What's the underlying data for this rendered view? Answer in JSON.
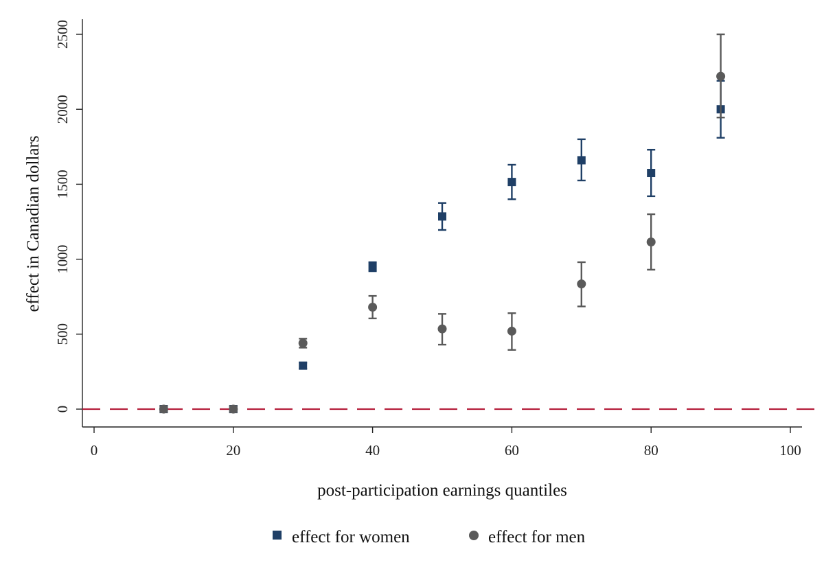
{
  "chart_data": {
    "type": "scatter",
    "title": "",
    "xlabel": "post-participation earnings quantiles",
    "ylabel": "effect in Canadian dollars",
    "xlim": [
      0,
      100
    ],
    "ylim": [
      0,
      2500
    ],
    "xticks": [
      "0",
      "20",
      "40",
      "60",
      "80",
      "100"
    ],
    "yticks": [
      "0",
      "500",
      "1000",
      "1500",
      "2000",
      "2500"
    ],
    "grid": false,
    "legend_position": "bottom",
    "reference_line": {
      "y": 0,
      "style": "dashed",
      "color": "#b5203d"
    },
    "series": [
      {
        "name": "effect for women",
        "marker": "square",
        "color": "#1f3f66",
        "x": [
          10,
          20,
          30,
          40,
          50,
          60,
          70,
          80,
          90
        ],
        "y": [
          0,
          0,
          290,
          950,
          1285,
          1515,
          1660,
          1575,
          2000
        ],
        "ci_low": [
          -20,
          -20,
          270,
          920,
          1195,
          1400,
          1525,
          1420,
          1810
        ],
        "ci_high": [
          20,
          20,
          310,
          980,
          1375,
          1630,
          1800,
          1730,
          2190
        ]
      },
      {
        "name": "effect for men",
        "marker": "circle",
        "color": "#5a5a5a",
        "x": [
          10,
          20,
          30,
          40,
          50,
          60,
          70,
          80,
          90
        ],
        "y": [
          0,
          0,
          440,
          680,
          535,
          520,
          835,
          1115,
          2220
        ],
        "ci_low": [
          -20,
          -20,
          410,
          605,
          430,
          395,
          685,
          930,
          1945
        ],
        "ci_high": [
          20,
          20,
          470,
          755,
          635,
          640,
          980,
          1300,
          2500
        ]
      }
    ]
  }
}
